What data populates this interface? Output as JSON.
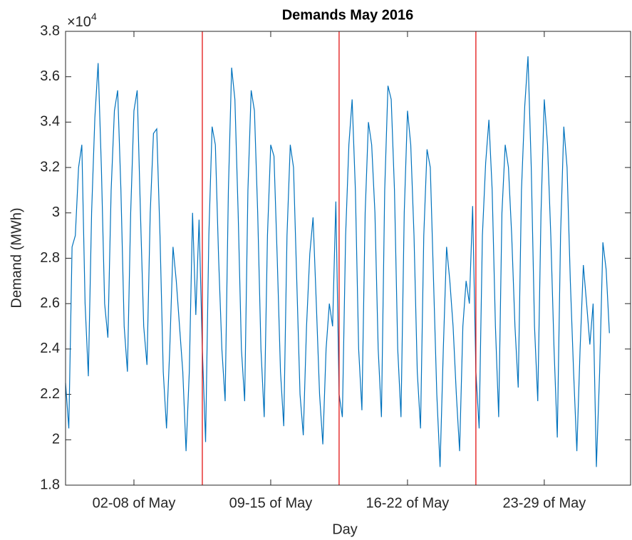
{
  "chart_data": {
    "type": "line",
    "title": "Demands May 2016",
    "x_label": "Day",
    "y_label": "Demand (MWh)",
    "y_multiplier": "×10",
    "y_multiplier_exponent": "4",
    "x": [
      0,
      4,
      8,
      12,
      16,
      20,
      24,
      28,
      32,
      36,
      40,
      44,
      48,
      52,
      56,
      60,
      64,
      68,
      72,
      76,
      80,
      84,
      88,
      92,
      96,
      100,
      104,
      108,
      112,
      116,
      120,
      124,
      128,
      132,
      136,
      140,
      144,
      148,
      152,
      156,
      160,
      164,
      168,
      172,
      176,
      180,
      184,
      188,
      192,
      196,
      200,
      204,
      208,
      212,
      216,
      220,
      224,
      228,
      232,
      236,
      240,
      244,
      248,
      252,
      256,
      260,
      264,
      268,
      272,
      276,
      280,
      284,
      288,
      292,
      296,
      300,
      304,
      308,
      312,
      316,
      320,
      324,
      328,
      332,
      336,
      340,
      344,
      348,
      352,
      356,
      360,
      364,
      368,
      372,
      376,
      380,
      384,
      388,
      392,
      396,
      400,
      404,
      408,
      412,
      416,
      420,
      424,
      428,
      432,
      436,
      440,
      444,
      448,
      452,
      456,
      460,
      464,
      468,
      472,
      476,
      480,
      484,
      488,
      492,
      496,
      500,
      504,
      508,
      512,
      516,
      520,
      524,
      528,
      532,
      536,
      540,
      544,
      548,
      552,
      556,
      560,
      564,
      568,
      572,
      576,
      580,
      584,
      588,
      592,
      596,
      600,
      604,
      608,
      612,
      616,
      620,
      624,
      628,
      632,
      636,
      640,
      644,
      648,
      652,
      656,
      660,
      664,
      668
    ],
    "values": [
      2.25,
      2.05,
      2.85,
      2.9,
      3.2,
      3.3,
      2.6,
      2.28,
      3.0,
      3.42,
      3.66,
      3.2,
      2.6,
      2.45,
      3.1,
      3.45,
      3.54,
      3.1,
      2.5,
      2.3,
      3.0,
      3.45,
      3.54,
      3.0,
      2.5,
      2.33,
      3.0,
      3.35,
      3.37,
      2.9,
      2.3,
      2.05,
      2.4,
      2.85,
      2.7,
      2.5,
      2.3,
      1.95,
      2.3,
      3.0,
      2.55,
      2.97,
      2.4,
      1.99,
      2.9,
      3.38,
      3.3,
      2.8,
      2.4,
      2.17,
      3.1,
      3.64,
      3.5,
      3.0,
      2.4,
      2.17,
      3.1,
      3.54,
      3.45,
      3.0,
      2.4,
      2.1,
      2.9,
      3.3,
      3.25,
      2.8,
      2.3,
      2.06,
      2.9,
      3.3,
      3.2,
      2.7,
      2.2,
      2.02,
      2.5,
      2.82,
      2.98,
      2.6,
      2.2,
      1.98,
      2.4,
      2.6,
      2.5,
      3.05,
      2.2,
      2.1,
      2.9,
      3.3,
      3.5,
      3.1,
      2.4,
      2.13,
      3.0,
      3.4,
      3.3,
      3.0,
      2.4,
      2.1,
      3.1,
      3.56,
      3.5,
      3.1,
      2.4,
      2.1,
      3.0,
      3.45,
      3.3,
      2.9,
      2.3,
      2.05,
      2.9,
      3.28,
      3.2,
      2.7,
      2.2,
      1.88,
      2.4,
      2.85,
      2.7,
      2.5,
      2.2,
      1.95,
      2.5,
      2.7,
      2.6,
      3.03,
      2.3,
      2.05,
      2.9,
      3.22,
      3.41,
      3.1,
      2.5,
      2.1,
      3.0,
      3.3,
      3.2,
      2.9,
      2.5,
      2.23,
      3.1,
      3.47,
      3.69,
      3.2,
      2.5,
      2.17,
      3.0,
      3.5,
      3.3,
      2.9,
      2.4,
      2.01,
      2.9,
      3.38,
      3.2,
      2.7,
      2.3,
      1.95,
      2.4,
      2.77,
      2.6,
      2.42,
      2.6,
      1.88,
      2.3,
      2.87,
      2.75,
      2.47
    ],
    "color": "#0072bd",
    "vlines": [
      168,
      336,
      504
    ],
    "vline_color": "#e00000",
    "xlim": [
      0,
      694
    ],
    "xticks": [
      {
        "value": 84,
        "label": "02-08 of May"
      },
      {
        "value": 252,
        "label": "09-15 of May"
      },
      {
        "value": 420,
        "label": "16-22 of May"
      },
      {
        "value": 588,
        "label": "23-29 of May"
      }
    ],
    "ylim": [
      1.8,
      3.8
    ],
    "yticks": [
      1.8,
      2,
      2.2,
      2.4,
      2.6,
      2.8,
      3,
      3.2,
      3.4,
      3.6,
      3.8
    ],
    "grid": false
  }
}
